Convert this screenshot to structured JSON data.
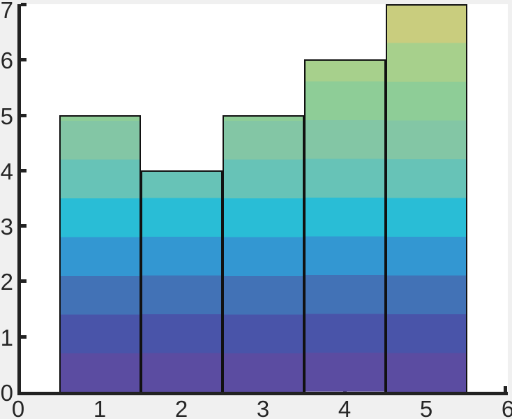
{
  "figure": {
    "background": "#f0f0f0",
    "plot_background": "#ffffff",
    "axis_color": "#222222",
    "tick_label_color": "#262626"
  },
  "chart_data": {
    "type": "bar",
    "x": [
      1,
      2,
      3,
      4,
      5
    ],
    "values": [
      5,
      4,
      5,
      6,
      7
    ],
    "bar_width": 1.0,
    "bar_edge_color": "#111111",
    "title": "",
    "xlabel": "",
    "ylabel": "",
    "xlim": [
      0,
      6
    ],
    "ylim": [
      0,
      7
    ],
    "x_ticks": [
      0,
      1,
      2,
      3,
      4,
      5,
      6
    ],
    "y_ticks": [
      0,
      1,
      2,
      3,
      4,
      5,
      6,
      7
    ],
    "grid": false,
    "legend": null,
    "box": "left and bottom spines only, ticks pointing inward",
    "fill_style": "horizontal colormap bands mapped to y value, shared baseline across bars",
    "gradient_bands": {
      "band_height_units": 0.7,
      "colors_bottom_to_top": [
        "#5b4ca1",
        "#4954a9",
        "#4272b6",
        "#3397d2",
        "#29bdd6",
        "#67c3b7",
        "#83c6a5",
        "#8ecd97",
        "#a7d08c",
        "#c9cd7e"
      ]
    }
  }
}
